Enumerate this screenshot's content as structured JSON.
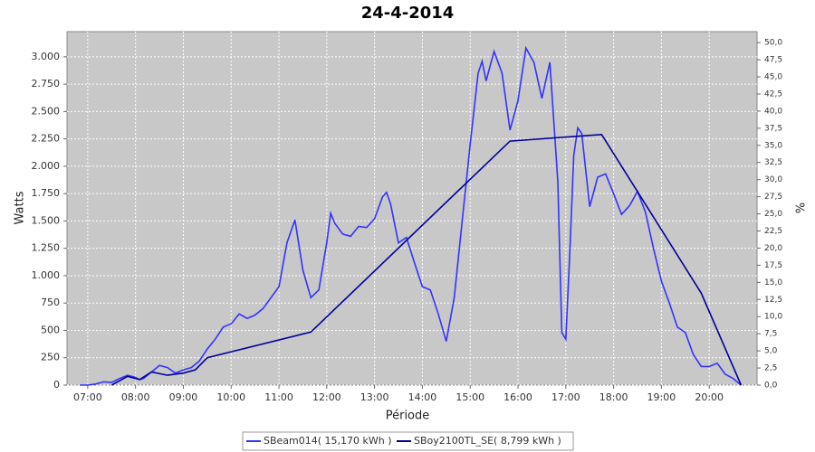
{
  "chart_data": {
    "type": "line",
    "title": "24-4-2014",
    "xlabel": "Période",
    "ylabel": "Watts",
    "y2label": "%",
    "xlim": [
      "06:34",
      "21:00"
    ],
    "xticks": [
      "07:00",
      "08:00",
      "09:00",
      "10:00",
      "11:00",
      "12:00",
      "13:00",
      "14:00",
      "15:00",
      "16:00",
      "17:00",
      "18:00",
      "19:00",
      "20:00"
    ],
    "ylim": [
      0,
      3230
    ],
    "yticks": [
      0,
      250,
      500,
      750,
      {
        "value": 1000,
        "label": "1.000"
      },
      {
        "value": 1250,
        "label": "1.250"
      },
      {
        "value": 1500,
        "label": "1.500"
      },
      {
        "value": 1750,
        "label": "1.750"
      },
      {
        "value": 2000,
        "label": "2.000"
      },
      {
        "value": 2250,
        "label": "2.250"
      },
      {
        "value": 2500,
        "label": "2.500"
      },
      {
        "value": 2750,
        "label": "2.750"
      },
      {
        "value": 3000,
        "label": "3.000"
      }
    ],
    "y2lim": [
      0,
      51.6
    ],
    "y2ticks": [
      {
        "value": 0,
        "label": "0,0"
      },
      {
        "value": 2.5,
        "label": "2,5"
      },
      {
        "value": 5,
        "label": "5,0"
      },
      {
        "value": 7.5,
        "label": "7,5"
      },
      {
        "value": 10,
        "label": "10,0"
      },
      {
        "value": 12.5,
        "label": "12,5"
      },
      {
        "value": 15,
        "label": "15,0"
      },
      {
        "value": 17.5,
        "label": "17,5"
      },
      {
        "value": 20,
        "label": "20,0"
      },
      {
        "value": 22.5,
        "label": "22,5"
      },
      {
        "value": 25,
        "label": "25,0"
      },
      {
        "value": 27.5,
        "label": "27,5"
      },
      {
        "value": 30,
        "label": "30,0"
      },
      {
        "value": 32.5,
        "label": "32,5"
      },
      {
        "value": 35,
        "label": "35,0"
      },
      {
        "value": 37.5,
        "label": "37,5"
      },
      {
        "value": 40,
        "label": "40,0"
      },
      {
        "value": 42.5,
        "label": "42,5"
      },
      {
        "value": 45,
        "label": "45,0"
      },
      {
        "value": 47.5,
        "label": "47,5"
      },
      {
        "value": 50,
        "label": "50,0"
      }
    ],
    "grid": true,
    "series": [
      {
        "name": "SBeam014( 15,170 kWh )",
        "color": "#3333ff",
        "x": [
          "06:50",
          "07:00",
          "07:10",
          "07:20",
          "07:30",
          "07:40",
          "07:50",
          "08:00",
          "08:05",
          "08:10",
          "08:20",
          "08:30",
          "08:40",
          "08:50",
          "09:00",
          "09:10",
          "09:20",
          "09:30",
          "09:40",
          "09:50",
          "10:00",
          "10:10",
          "10:20",
          "10:30",
          "10:40",
          "10:50",
          "11:00",
          "11:10",
          "11:20",
          "11:30",
          "11:40",
          "11:50",
          "12:00",
          "12:05",
          "12:10",
          "12:20",
          "12:30",
          "12:40",
          "12:50",
          "13:00",
          "13:10",
          "13:15",
          "13:20",
          "13:30",
          "13:40",
          "13:50",
          "14:00",
          "14:10",
          "14:20",
          "14:30",
          "14:40",
          "14:50",
          "15:00",
          "15:10",
          "15:15",
          "15:20",
          "15:30",
          "15:40",
          "15:50",
          "16:00",
          "16:10",
          "16:20",
          "16:30",
          "16:40",
          "16:50",
          "16:55",
          "17:00",
          "17:05",
          "17:10",
          "17:15",
          "17:20",
          "17:30",
          "17:40",
          "17:50",
          "18:00",
          "18:10",
          "18:20",
          "18:30",
          "18:40",
          "18:50",
          "19:00",
          "19:10",
          "19:20",
          "19:30",
          "19:40",
          "19:50",
          "20:00",
          "20:10",
          "20:20",
          "20:30",
          "20:40"
        ],
        "values": [
          0,
          0,
          10,
          30,
          25,
          60,
          90,
          70,
          50,
          60,
          120,
          180,
          160,
          110,
          140,
          160,
          220,
          330,
          420,
          530,
          560,
          650,
          610,
          640,
          700,
          800,
          900,
          1300,
          1510,
          1050,
          800,
          870,
          1300,
          1570,
          1480,
          1380,
          1360,
          1450,
          1440,
          1520,
          1720,
          1760,
          1660,
          1300,
          1350,
          1120,
          900,
          870,
          650,
          400,
          800,
          1500,
          2200,
          2850,
          2960,
          2780,
          3050,
          2850,
          2330,
          2600,
          3080,
          2950,
          2620,
          2950,
          1860,
          480,
          420,
          1200,
          2100,
          2350,
          2300,
          1630,
          1900,
          1930,
          1750,
          1560,
          1640,
          1770,
          1580,
          1250,
          950,
          750,
          530,
          480,
          280,
          170,
          170,
          200,
          100,
          60,
          0
        ]
      },
      {
        "name": "SBoy2100TL_SE( 8,799 kWh )",
        "color": "#000099",
        "x": [
          "07:30",
          "07:50",
          "08:05",
          "08:20",
          "08:40",
          "09:00",
          "09:15",
          "09:30",
          "11:40",
          "15:50",
          "17:45",
          "19:50",
          "20:40"
        ],
        "values": [
          0,
          80,
          50,
          120,
          90,
          110,
          140,
          250,
          485,
          2230,
          2290,
          840,
          0
        ]
      }
    ]
  }
}
